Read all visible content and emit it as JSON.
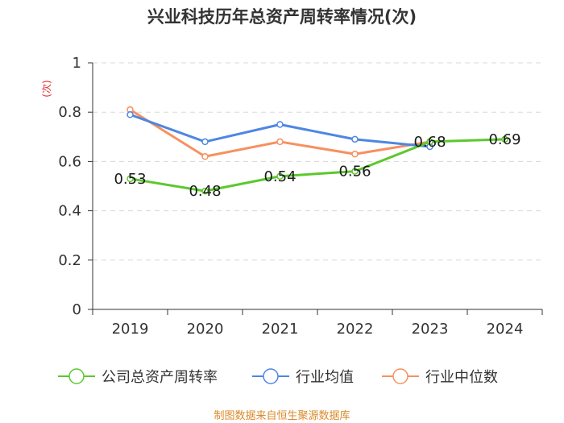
{
  "chart_data": {
    "type": "line",
    "title": "兴业科技历年总资产周转率情况(次)",
    "ylabel": "(次)",
    "xlabel": "",
    "categories": [
      "2019",
      "2020",
      "2021",
      "2022",
      "2023",
      "2024"
    ],
    "ylim": [
      0,
      1
    ],
    "yticks": [
      0,
      0.2,
      0.4,
      0.6,
      0.8,
      1
    ],
    "ytick_labels": [
      "0",
      "0.2",
      "0.4",
      "0.6",
      "0.8",
      "1"
    ],
    "grid": true,
    "legend_position": "bottom",
    "series": [
      {
        "name": "公司总资产周转率",
        "color": "#5cc82e",
        "values": [
          0.53,
          0.48,
          0.54,
          0.56,
          0.68,
          0.69
        ],
        "data_labels": [
          "0.53",
          "0.48",
          "0.54",
          "0.56",
          "0.68",
          "0.69"
        ]
      },
      {
        "name": "行业均值",
        "color": "#4e86e4",
        "values": [
          0.79,
          0.68,
          0.75,
          0.69,
          0.66,
          null
        ]
      },
      {
        "name": "行业中位数",
        "color": "#f7905f",
        "values": [
          0.81,
          0.62,
          0.68,
          0.63,
          0.68,
          null
        ]
      }
    ],
    "source": "制图数据来自恒生聚源数据库"
  }
}
